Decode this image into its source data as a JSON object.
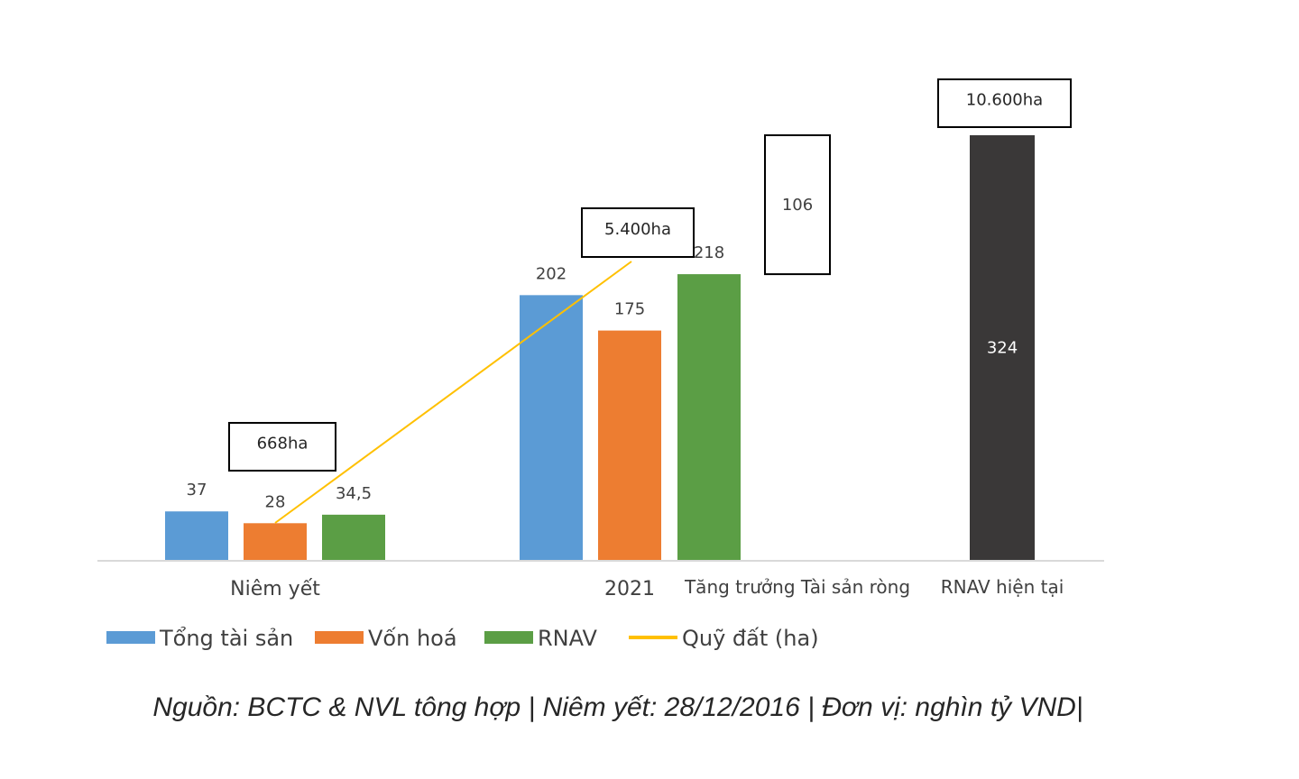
{
  "chart_data": {
    "type": "bar",
    "categories": [
      "Niêm yết",
      "2021",
      "Tăng trưởng Tài sản ròng",
      "RNAV hiện tại"
    ],
    "series": [
      {
        "name": "Tổng tài sản",
        "color": "#5B9BD5",
        "values": [
          37,
          202,
          null,
          null
        ],
        "labels": [
          "37",
          "202",
          "",
          ""
        ]
      },
      {
        "name": "Vốn hoá",
        "color": "#ED7D31",
        "values": [
          28,
          175,
          null,
          null
        ],
        "labels": [
          "28",
          "175",
          "",
          ""
        ]
      },
      {
        "name": "RNAV",
        "color": "#5B9E45",
        "values": [
          34.5,
          218,
          null,
          null
        ],
        "labels": [
          "34,5",
          "218",
          "",
          ""
        ]
      },
      {
        "name": "Quỹ đất (ha)",
        "type": "line",
        "color": "#FFC000",
        "values": [
          668,
          5400,
          null,
          10600
        ],
        "labels": [
          "668ha",
          "5.400ha",
          "",
          "10.600ha"
        ]
      }
    ],
    "waterfall": [
      {
        "category": "Tăng trưởng Tài sản ròng",
        "value": 106,
        "base": 218,
        "label": "106",
        "color": "#FFFFFF"
      },
      {
        "category": "RNAV hiện tại",
        "value": 324,
        "base": 0,
        "label": "324",
        "color": "#3A3838"
      }
    ],
    "ylim": [
      0,
      324
    ],
    "grid": false,
    "legend_position": "bottom-left",
    "source": "Nguồn: BCTC & NVL tông hợp | Niêm yết: 28/12/2016 | Đơn vị: nghìn tỷ VND|"
  }
}
